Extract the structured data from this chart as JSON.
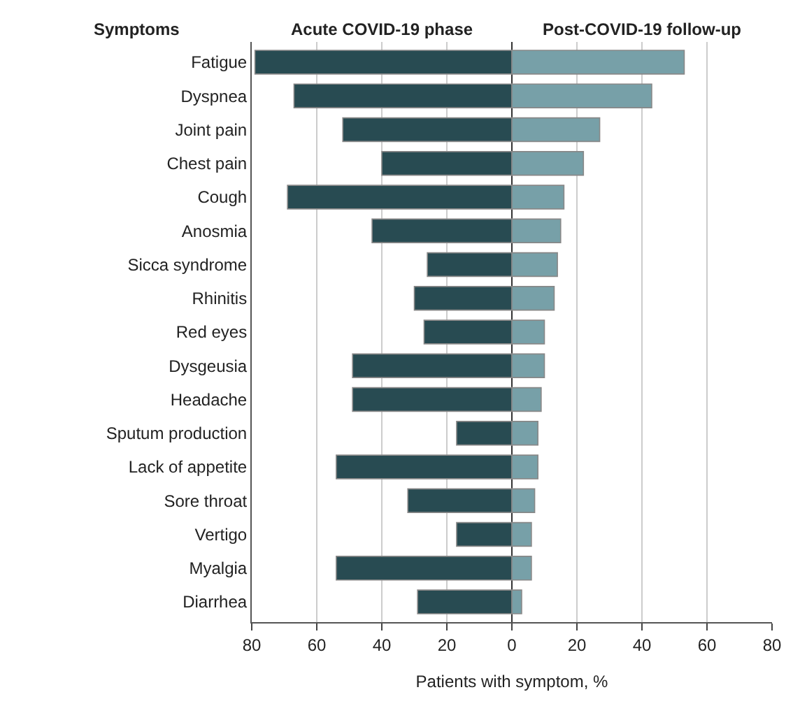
{
  "chart_data": {
    "type": "bar",
    "orientation": "horizontal",
    "ylabel": "Symptoms",
    "xlabel": "Patients with symptom, %",
    "categories": [
      "Fatigue",
      "Dyspnea",
      "Joint pain",
      "Chest pain",
      "Cough",
      "Anosmia",
      "Sicca syndrome",
      "Rhinitis",
      "Red eyes",
      "Dysgeusia",
      "Headache",
      "Sputum production",
      "Lack of appetite",
      "Sore throat",
      "Vertigo",
      "Myalgia",
      "Diarrhea"
    ],
    "series": [
      {
        "name": "Acute COVID-19 phase",
        "color": "#284b52",
        "values": [
          -79,
          -67,
          -52,
          -40,
          -69,
          -43,
          -26,
          -30,
          -27,
          -49,
          -49,
          -17,
          -54,
          -32,
          -17,
          -54,
          -29
        ]
      },
      {
        "name": "Post-COVID-19 follow-up",
        "color": "#77a0a8",
        "values": [
          53,
          43,
          27,
          22,
          16,
          15,
          14,
          13,
          10,
          10,
          9,
          8,
          8,
          7,
          6,
          6,
          3
        ]
      }
    ],
    "xlim": [
      -80,
      80
    ],
    "xticks": [
      {
        "value": -80,
        "label": "80"
      },
      {
        "value": -60,
        "label": "60"
      },
      {
        "value": -40,
        "label": "40"
      },
      {
        "value": -20,
        "label": "20"
      },
      0,
      20,
      40,
      60,
      80
    ],
    "stacked": true,
    "grid": "x",
    "legend": false
  }
}
